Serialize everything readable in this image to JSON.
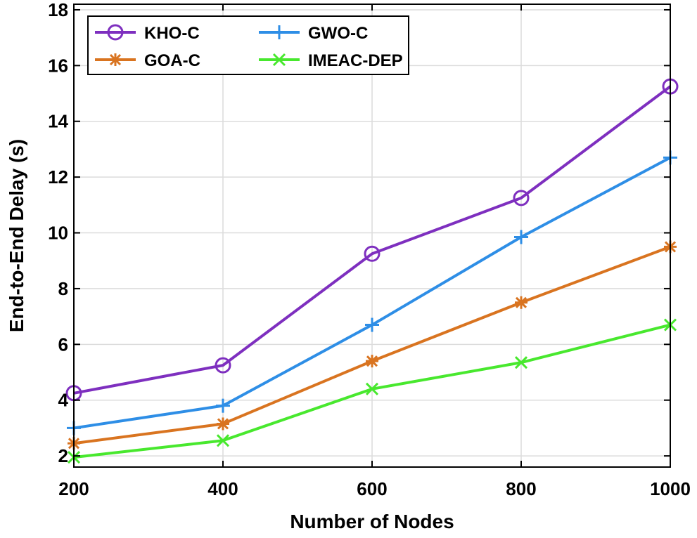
{
  "chart_data": {
    "type": "line",
    "title": "",
    "xlabel": "Number of Nodes",
    "ylabel": "End-to-End Delay (s)",
    "x": [
      200,
      400,
      600,
      800,
      1000
    ],
    "xlim": [
      200,
      1000
    ],
    "ylim": [
      1.6,
      18.2
    ],
    "xticks": [
      200,
      400,
      600,
      800,
      1000
    ],
    "yticks": [
      2,
      4,
      6,
      8,
      10,
      12,
      14,
      16,
      18
    ],
    "grid": true,
    "legend_placement": "top-left",
    "legend_columns": 2,
    "series": [
      {
        "name": "KHO-C",
        "color": "#7e2fbf",
        "marker": "circle",
        "values": [
          4.25,
          5.25,
          9.25,
          11.25,
          15.25
        ]
      },
      {
        "name": "GWO-C",
        "color": "#2e8ee6",
        "marker": "plus",
        "values": [
          3.0,
          3.8,
          6.7,
          9.85,
          12.7
        ]
      },
      {
        "name": "GOA-C",
        "color": "#d97420",
        "marker": "asterisk",
        "values": [
          2.45,
          3.15,
          5.4,
          7.5,
          9.5
        ]
      },
      {
        "name": "IMEAC-DEP",
        "color": "#48e82e",
        "marker": "x",
        "values": [
          1.95,
          2.55,
          4.4,
          5.35,
          6.7
        ]
      }
    ]
  }
}
